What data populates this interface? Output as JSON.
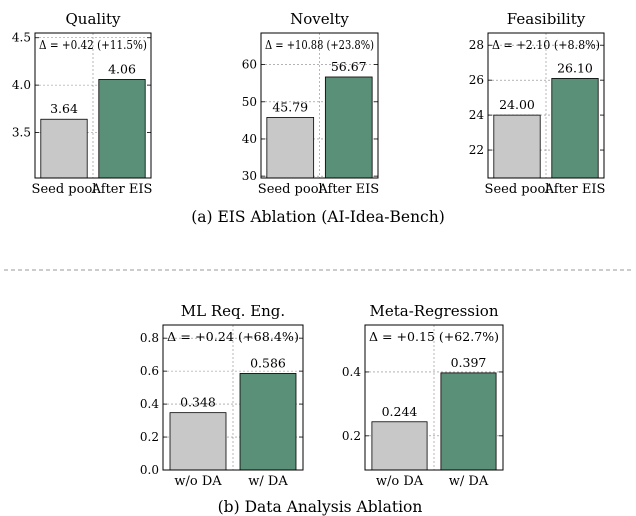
{
  "caption_a": "(a) EIS Ablation (AI-Idea-Bench)",
  "caption_b": "(b) Data Analysis Ablation",
  "colors": {
    "baseline": "#c8c8c8",
    "improved": "#5a9077",
    "delta_text": "#777777"
  },
  "chart_data": [
    {
      "type": "bar",
      "title": "Quality",
      "categories": [
        "Seed pool",
        "After EIS"
      ],
      "values": [
        3.64,
        4.06
      ],
      "value_labels": [
        "3.64",
        "4.06"
      ],
      "ylim": [
        3.02,
        4.55
      ],
      "yticks": [
        3.5,
        4.0,
        4.5
      ],
      "ytick_labels": [
        "3.5",
        "4.0",
        "4.5"
      ],
      "annotation": "Δ = +0.42 (+11.5%)",
      "grid": true
    },
    {
      "type": "bar",
      "title": "Novelty",
      "categories": [
        "Seed pool",
        "After EIS"
      ],
      "values": [
        45.79,
        56.67
      ],
      "value_labels": [
        "45.79",
        "56.67"
      ],
      "ylim": [
        29.5,
        68.5
      ],
      "yticks": [
        30,
        40,
        50,
        60
      ],
      "ytick_labels": [
        "30",
        "40",
        "50",
        "60"
      ],
      "annotation": "Δ = +10.88 (+23.8%)",
      "grid": true
    },
    {
      "type": "bar",
      "title": "Feasibility",
      "categories": [
        "Seed pool",
        "After EIS"
      ],
      "values": [
        24.0,
        26.1
      ],
      "value_labels": [
        "24.00",
        "26.10"
      ],
      "ylim": [
        20.4,
        28.7
      ],
      "yticks": [
        22,
        24,
        26,
        28
      ],
      "ytick_labels": [
        "22",
        "24",
        "26",
        "28"
      ],
      "annotation": "Δ = +2.10 (+8.8%)",
      "grid": true
    },
    {
      "type": "bar",
      "title": "ML Req. Eng.",
      "categories": [
        "w/o DA",
        "w/ DA"
      ],
      "values": [
        0.348,
        0.586
      ],
      "value_labels": [
        "0.348",
        "0.586"
      ],
      "ylim": [
        0,
        0.88
      ],
      "yticks": [
        0.0,
        0.2,
        0.4,
        0.6,
        0.8
      ],
      "ytick_labels": [
        "0.0",
        "0.2",
        "0.4",
        "0.6",
        "0.8"
      ],
      "annotation": "Δ = +0.24 (+68.4%)",
      "grid": true
    },
    {
      "type": "bar",
      "title": "Meta-Regression",
      "categories": [
        "w/o DA",
        "w/ DA"
      ],
      "values": [
        0.244,
        0.397
      ],
      "value_labels": [
        "0.244",
        "0.397"
      ],
      "ylim": [
        0.093,
        0.547
      ],
      "yticks": [
        0.2,
        0.4
      ],
      "ytick_labels": [
        "0.2",
        "0.4"
      ],
      "annotation": "Δ = +0.15 (+62.7%)",
      "grid": true
    }
  ]
}
